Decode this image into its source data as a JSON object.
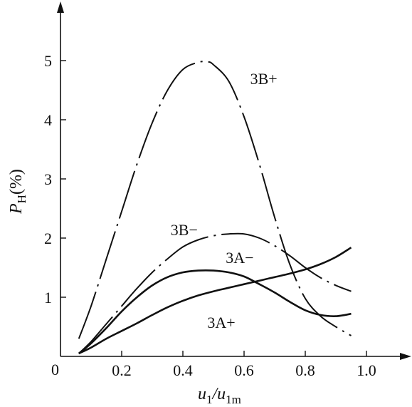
{
  "chart_data": {
    "type": "line",
    "title": "",
    "xlabel": {
      "main": "u",
      "sub1": "1",
      "slash": "/",
      "main2": "u",
      "sub2": "1m"
    },
    "ylabel": {
      "main": "P",
      "sub": "H",
      "unit": "(%)"
    },
    "origin_label": "0",
    "xlim": [
      0,
      1.15
    ],
    "ylim": [
      0,
      5.9
    ],
    "x_ticks": [
      {
        "value": 0.2,
        "label": "0.2"
      },
      {
        "value": 0.4,
        "label": "0.4"
      },
      {
        "value": 0.6,
        "label": "0.6"
      },
      {
        "value": 0.8,
        "label": "0.8"
      },
      {
        "value": 1.0,
        "label": "1.0"
      }
    ],
    "y_ticks": [
      {
        "value": 1,
        "label": "1"
      },
      {
        "value": 2,
        "label": "2"
      },
      {
        "value": 3,
        "label": "3"
      },
      {
        "value": 4,
        "label": "4"
      },
      {
        "value": 5,
        "label": "5"
      }
    ],
    "grid": false,
    "series": [
      {
        "name": "3B+",
        "style": "dashdot",
        "x": [
          0.06,
          0.1,
          0.15,
          0.2,
          0.25,
          0.3,
          0.35,
          0.4,
          0.45,
          0.48,
          0.5,
          0.55,
          0.6,
          0.65,
          0.7,
          0.75,
          0.8,
          0.85,
          0.9,
          0.95
        ],
        "y": [
          0.3,
          0.85,
          1.65,
          2.45,
          3.25,
          3.95,
          4.5,
          4.85,
          4.97,
          4.98,
          4.93,
          4.65,
          4.05,
          3.25,
          2.35,
          1.55,
          0.98,
          0.68,
          0.5,
          0.35
        ]
      },
      {
        "name": "3B−",
        "style": "dashdot",
        "x": [
          0.06,
          0.1,
          0.15,
          0.2,
          0.25,
          0.3,
          0.35,
          0.4,
          0.45,
          0.5,
          0.55,
          0.6,
          0.65,
          0.7,
          0.75,
          0.8,
          0.85,
          0.9,
          0.95
        ],
        "y": [
          0.05,
          0.25,
          0.55,
          0.85,
          1.15,
          1.42,
          1.65,
          1.85,
          1.97,
          2.04,
          2.07,
          2.07,
          2.0,
          1.87,
          1.7,
          1.5,
          1.33,
          1.2,
          1.1
        ]
      },
      {
        "name": "3A−",
        "style": "solid",
        "x": [
          0.06,
          0.1,
          0.15,
          0.2,
          0.25,
          0.3,
          0.35,
          0.4,
          0.45,
          0.5,
          0.55,
          0.6,
          0.65,
          0.7,
          0.75,
          0.8,
          0.85,
          0.9,
          0.95
        ],
        "y": [
          0.05,
          0.22,
          0.48,
          0.76,
          1.0,
          1.2,
          1.34,
          1.42,
          1.45,
          1.45,
          1.42,
          1.35,
          1.22,
          1.08,
          0.92,
          0.78,
          0.7,
          0.68,
          0.72
        ]
      },
      {
        "name": "3A+",
        "style": "solid",
        "x": [
          0.06,
          0.1,
          0.15,
          0.2,
          0.25,
          0.3,
          0.35,
          0.4,
          0.45,
          0.5,
          0.55,
          0.6,
          0.65,
          0.7,
          0.75,
          0.8,
          0.85,
          0.9,
          0.95
        ],
        "y": [
          0.05,
          0.15,
          0.3,
          0.43,
          0.56,
          0.7,
          0.83,
          0.94,
          1.03,
          1.1,
          1.16,
          1.22,
          1.28,
          1.34,
          1.4,
          1.47,
          1.56,
          1.68,
          1.84
        ]
      }
    ],
    "annotations": [
      {
        "text": "3B+",
        "x": 0.62,
        "y": 4.6
      },
      {
        "text": "3B−",
        "x": 0.36,
        "y": 2.05
      },
      {
        "text": "3A−",
        "x": 0.54,
        "y": 1.58
      },
      {
        "text": "3A+",
        "x": 0.48,
        "y": 0.48
      }
    ]
  }
}
